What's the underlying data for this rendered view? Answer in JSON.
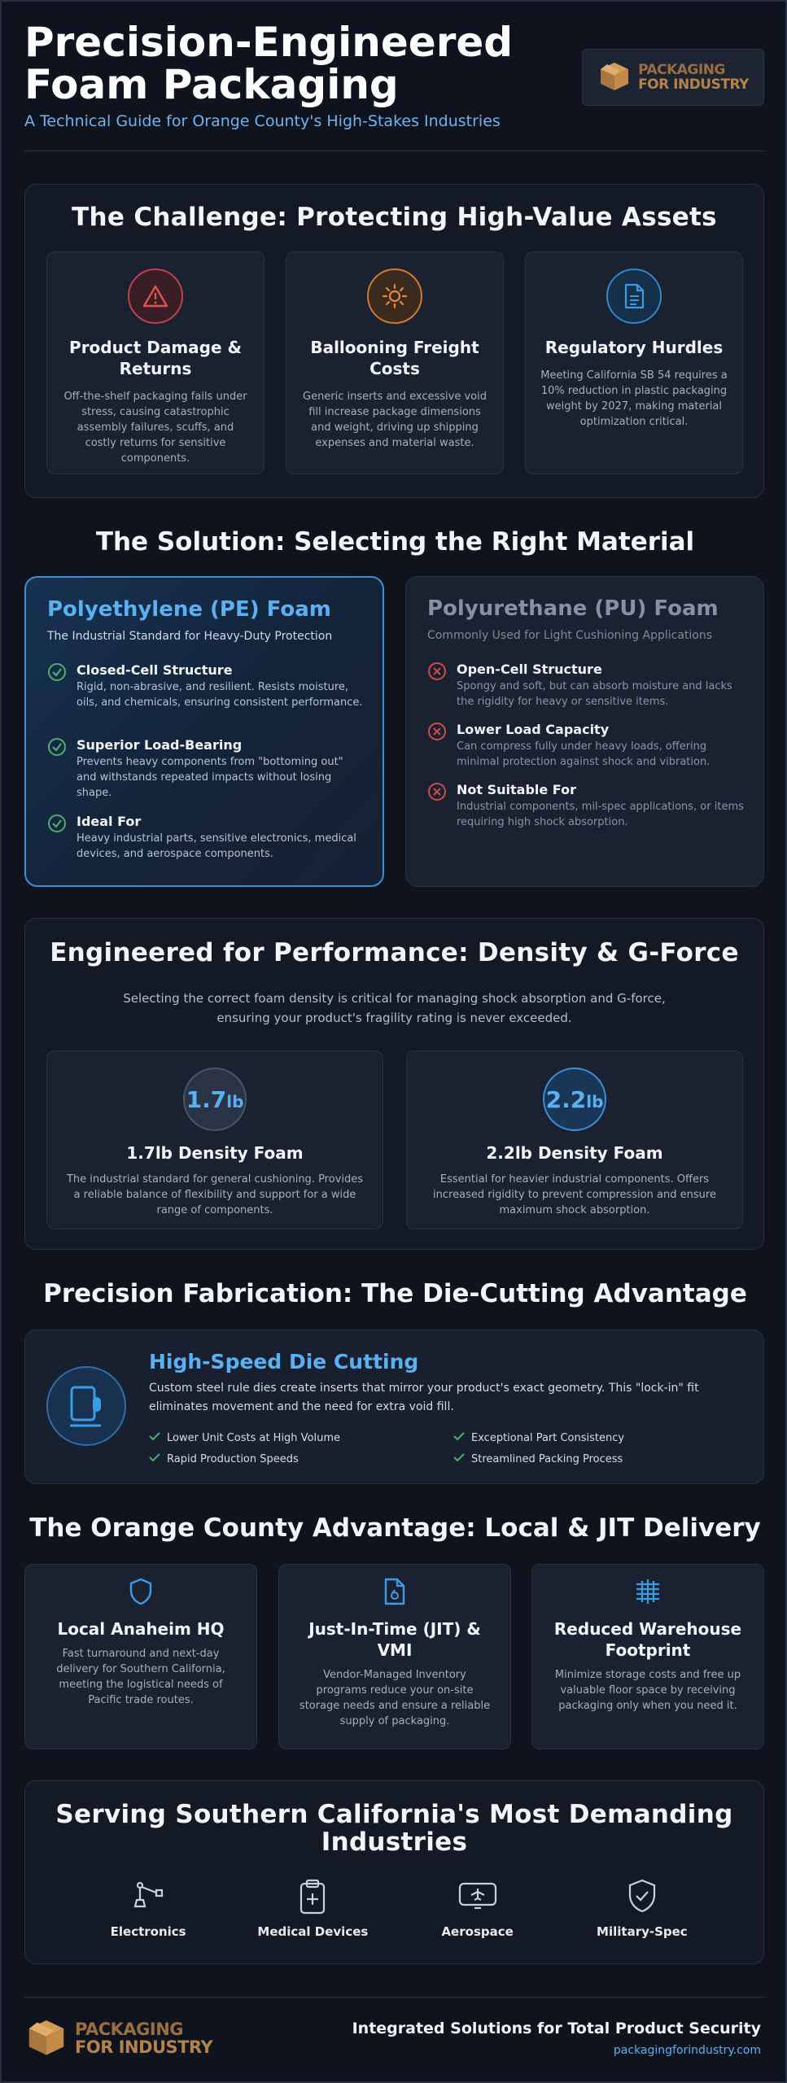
{
  "header": {
    "title_line1": "Precision-Engineered",
    "title_line2": "Foam Packaging",
    "subtitle": "A Technical Guide for Orange County's High-Stakes Industries",
    "logo_line1": "PACKAGING",
    "logo_line2": "FOR INDUSTRY"
  },
  "challenge": {
    "title": "The Challenge: Protecting High-Value Assets",
    "cards": [
      {
        "title": "Product Damage & Returns",
        "text": "Off-the-shelf packaging fails under stress, causing catastrophic assembly failures, scuffs, and costly returns for sensitive components.",
        "icon": "warning-icon",
        "color": "#e05252"
      },
      {
        "title": "Ballooning Freight Costs",
        "text": "Generic inserts and excessive void fill increase package dimensions and weight, driving up shipping expenses and material waste.",
        "icon": "sun-icon",
        "color": "#e8883a"
      },
      {
        "title": "Regulatory Hurdles",
        "text": "Meeting California SB 54 requires a 10% reduction in plastic packaging weight by 2027, making material optimization critical.",
        "icon": "document-icon",
        "color": "#3b9be6"
      }
    ]
  },
  "solution": {
    "title": "The Solution: Selecting the Right Material",
    "pe": {
      "title": "Polyethylene (PE) Foam",
      "subtitle": "The Industrial Standard for Heavy-Duty Protection",
      "features": [
        {
          "title": "Closed-Cell Structure",
          "text": "Rigid, non-abrasive, and resilient. Resists moisture, oils, and chemicals, ensuring consistent performance."
        },
        {
          "title": "Superior Load-Bearing",
          "text": "Prevents heavy components from \"bottoming out\" and withstands repeated impacts without losing shape."
        },
        {
          "title": "Ideal For",
          "text": "Heavy industrial parts, sensitive electronics, medical devices, and aerospace components."
        }
      ]
    },
    "pu": {
      "title": "Polyurethane (PU) Foam",
      "subtitle": "Commonly Used for Light Cushioning Applications",
      "features": [
        {
          "title": "Open-Cell Structure",
          "text": "Spongy and soft, but can absorb moisture and lacks the rigidity for heavy or sensitive items."
        },
        {
          "title": "Lower Load Capacity",
          "text": "Can compress fully under heavy loads, offering minimal protection against shock and vibration."
        },
        {
          "title": "Not Suitable For",
          "text": "Industrial components, mil-spec applications, or items requiring high shock absorption."
        }
      ]
    }
  },
  "performance": {
    "title": "Engineered for Performance: Density & G-Force",
    "intro": "Selecting the correct foam density is critical for managing shock absorption and G-force, ensuring your product's fragility rating is never exceeded.",
    "cards": [
      {
        "value": "1.7",
        "unit": "lb",
        "title": "1.7lb Density Foam",
        "text": "The industrial standard for general cushioning. Provides a reliable balance of flexibility and support for a wide range of components."
      },
      {
        "value": "2.2",
        "unit": "lb",
        "title": "2.2lb Density Foam",
        "text": "Essential for heavier industrial components. Offers increased rigidity to prevent compression and ensure maximum shock absorption."
      }
    ]
  },
  "fabrication": {
    "title": "Precision Fabrication: The Die-Cutting Advantage",
    "card_title": "High-Speed Die Cutting",
    "card_text": "Custom steel rule dies create inserts that mirror your product's exact geometry. This \"lock-in\" fit eliminates movement and the need for extra void fill.",
    "benefits": [
      "Lower Unit Costs at High Volume",
      "Exceptional Part Consistency",
      "Rapid Production Speeds",
      "Streamlined Packing Process"
    ]
  },
  "local": {
    "title": "The Orange County Advantage: Local & JIT Delivery",
    "cards": [
      {
        "title": "Local Anaheim HQ",
        "text": "Fast turnaround and next-day delivery for Southern California, meeting the logistical needs of Pacific trade routes.",
        "icon": "shield-icon"
      },
      {
        "title": "Just-In-Time (JIT) & VMI",
        "text": "Vendor-Managed Inventory programs reduce your on-site storage needs and ensure a reliable supply of packaging.",
        "icon": "file-search-icon"
      },
      {
        "title": "Reduced Warehouse Footprint",
        "text": "Minimize storage costs and free up valuable floor space by receiving packaging only when you need it.",
        "icon": "stack-icon"
      }
    ]
  },
  "industries": {
    "title_line1": "Serving Southern California's Most Demanding",
    "title_line2": "Industries",
    "items": [
      {
        "label": "Electronics",
        "icon": "robot-arm-icon"
      },
      {
        "label": "Medical Devices",
        "icon": "clipboard-plus-icon"
      },
      {
        "label": "Aerospace",
        "icon": "plane-screen-icon"
      },
      {
        "label": "Military-Spec",
        "icon": "shield-check-icon"
      }
    ]
  },
  "footer": {
    "logo_line1": "PACKAGING",
    "logo_line2": "FOR INDUSTRY",
    "tagline": "Integrated Solutions for Total Product Security",
    "url": "packagingforindustry.com"
  },
  "colors": {
    "accent_blue": "#5ab0f0",
    "success_green": "#4caf6d",
    "danger_red": "#e05252",
    "logo_brown": "#b5834a"
  }
}
